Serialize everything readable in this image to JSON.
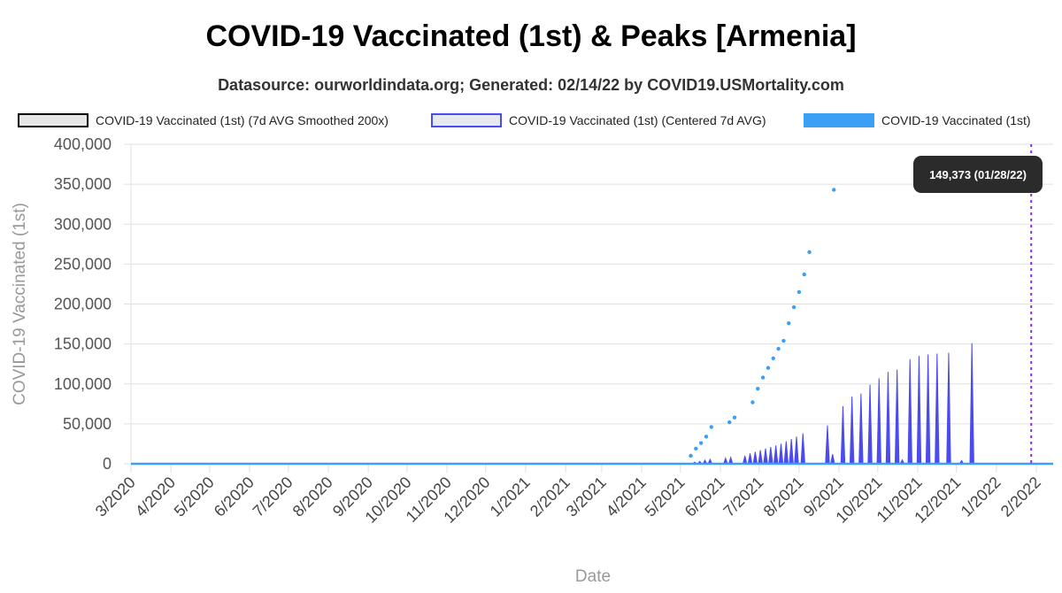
{
  "title": "COVID-19 Vaccinated (1st) & Peaks [Armenia]",
  "subtitle": "Datasource: ourworldindata.org; Generated: 02/14/22 by COVID19.USMortality.com",
  "tooltip": "149,373 (01/28/22)",
  "colors": {
    "smoothed": "#000000",
    "centered": "#4B4BF0",
    "daily": "#3BA0F5",
    "marker": "#8A2BE2",
    "grid": "#e0e0e0"
  },
  "legend": [
    {
      "label": "COVID-19 Vaccinated (1st) (7d AVG Smoothed 200x)",
      "fill": "#e6e6e6",
      "border": "#000000"
    },
    {
      "label": "COVID-19 Vaccinated (1st) (Centered 7d AVG)",
      "fill": "#e8e8f0",
      "border": "#4B4BF0"
    },
    {
      "label": "COVID-19 Vaccinated (1st)",
      "fill": "#3BA0F5",
      "border": "#3BA0F5"
    }
  ],
  "chart_data": {
    "type": "line",
    "xlabel": "Date",
    "ylabel": "COVID-19 Vaccinated (1st)",
    "ylim": [
      0,
      400000
    ],
    "yticks": [
      "0",
      "50,000",
      "100,000",
      "150,000",
      "200,000",
      "250,000",
      "300,000",
      "350,000",
      "400,000"
    ],
    "x_range": [
      "2020-03-01",
      "2022-02-14"
    ],
    "x_ticks": [
      {
        "label": "3/2020",
        "date": "2020-03-01"
      },
      {
        "label": "4/2020",
        "date": "2020-04-01"
      },
      {
        "label": "5/2020",
        "date": "2020-05-01"
      },
      {
        "label": "6/2020",
        "date": "2020-06-01"
      },
      {
        "label": "7/2020",
        "date": "2020-07-01"
      },
      {
        "label": "8/2020",
        "date": "2020-08-01"
      },
      {
        "label": "9/2020",
        "date": "2020-09-01"
      },
      {
        "label": "10/2020",
        "date": "2020-10-01"
      },
      {
        "label": "11/2020",
        "date": "2020-11-01"
      },
      {
        "label": "12/2020",
        "date": "2020-12-01"
      },
      {
        "label": "1/2021",
        "date": "2021-01-01"
      },
      {
        "label": "2/2021",
        "date": "2021-02-01"
      },
      {
        "label": "3/2021",
        "date": "2021-03-01"
      },
      {
        "label": "4/2021",
        "date": "2021-04-01"
      },
      {
        "label": "5/2021",
        "date": "2021-05-01"
      },
      {
        "label": "6/2021",
        "date": "2021-06-01"
      },
      {
        "label": "7/2021",
        "date": "2021-07-01"
      },
      {
        "label": "8/2021",
        "date": "2021-08-01"
      },
      {
        "label": "9/2021",
        "date": "2021-09-01"
      },
      {
        "label": "10/2021",
        "date": "2021-10-01"
      },
      {
        "label": "11/2021",
        "date": "2021-11-01"
      },
      {
        "label": "12/2021",
        "date": "2021-12-01"
      },
      {
        "label": "1/2022",
        "date": "2022-01-01"
      },
      {
        "label": "2/2022",
        "date": "2022-02-01"
      }
    ],
    "marker_date": "2022-01-28",
    "series": [
      {
        "name": "COVID-19 Vaccinated (1st)",
        "style": "dots",
        "points": [
          [
            "2021-05-09",
            10000
          ],
          [
            "2021-05-13",
            19000
          ],
          [
            "2021-05-17",
            26000
          ],
          [
            "2021-05-21",
            34000
          ],
          [
            "2021-05-25",
            46000
          ],
          [
            "2021-06-08",
            52000
          ],
          [
            "2021-06-12",
            58000
          ],
          [
            "2021-06-26",
            77000
          ],
          [
            "2021-06-30",
            94000
          ],
          [
            "2021-07-04",
            108000
          ],
          [
            "2021-07-08",
            120000
          ],
          [
            "2021-07-12",
            132000
          ],
          [
            "2021-07-16",
            144000
          ],
          [
            "2021-07-20",
            154000
          ],
          [
            "2021-07-24",
            176000
          ],
          [
            "2021-07-28",
            196000
          ],
          [
            "2021-08-01",
            215000
          ],
          [
            "2021-08-05",
            237000
          ],
          [
            "2021-08-09",
            265000
          ],
          [
            "2021-08-28",
            343000
          ]
        ]
      },
      {
        "name": "COVID-19 Vaccinated (1st) (Centered 7d AVG)",
        "style": "spikes",
        "points": [
          [
            "2021-05-12",
            2000
          ],
          [
            "2021-05-16",
            3000
          ],
          [
            "2021-05-20",
            4500
          ],
          [
            "2021-05-24",
            5500
          ],
          [
            "2021-06-05",
            7000
          ],
          [
            "2021-06-09",
            8000
          ],
          [
            "2021-06-20",
            10000
          ],
          [
            "2021-06-24",
            13000
          ],
          [
            "2021-06-28",
            15000
          ],
          [
            "2021-07-02",
            17000
          ],
          [
            "2021-07-06",
            19000
          ],
          [
            "2021-07-10",
            21000
          ],
          [
            "2021-07-14",
            23000
          ],
          [
            "2021-07-18",
            25000
          ],
          [
            "2021-07-22",
            28000
          ],
          [
            "2021-07-26",
            31000
          ],
          [
            "2021-07-30",
            34000
          ],
          [
            "2021-08-04",
            38000
          ],
          [
            "2021-08-23",
            48000
          ],
          [
            "2021-08-27",
            12000
          ],
          [
            "2021-09-04",
            72000
          ],
          [
            "2021-09-11",
            84000
          ],
          [
            "2021-09-18",
            88000
          ],
          [
            "2021-09-25",
            99000
          ],
          [
            "2021-10-02",
            107000
          ],
          [
            "2021-10-09",
            115000
          ],
          [
            "2021-10-16",
            118000
          ],
          [
            "2021-10-20",
            5000
          ],
          [
            "2021-10-26",
            131000
          ],
          [
            "2021-11-02",
            135000
          ],
          [
            "2021-11-09",
            137000
          ],
          [
            "2021-11-16",
            138000
          ],
          [
            "2021-11-25",
            139000
          ],
          [
            "2021-12-05",
            4000
          ],
          [
            "2021-12-13",
            151000
          ]
        ]
      },
      {
        "name": "COVID-19 Vaccinated (1st) (7d AVG Smoothed 200x)",
        "style": "baseline",
        "points": [
          [
            "2020-03-01",
            0
          ],
          [
            "2022-02-14",
            0
          ]
        ]
      }
    ]
  }
}
